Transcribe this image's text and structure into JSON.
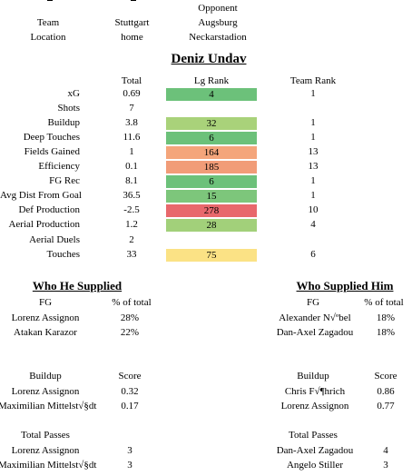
{
  "header": {
    "cols": [
      "",
      "",
      "Opponent"
    ],
    "row1": {
      "label": "Team",
      "team": "Stuttgart",
      "opponent": "Augsburg"
    },
    "row2": {
      "label": "Location",
      "team": "home",
      "opponent": "Neckarstadion"
    }
  },
  "player": "Deniz Undav",
  "stats_table": {
    "columns": [
      "Total",
      "Lg Rank",
      "Team Rank"
    ],
    "rows": [
      {
        "name": "xG",
        "total": "0.69",
        "lg_rank": "4",
        "team_rank": "1",
        "color": "#6cc17a"
      },
      {
        "name": "Shots",
        "total": "7",
        "lg_rank": "",
        "team_rank": "",
        "color": ""
      },
      {
        "name": "Buildup",
        "total": "3.8",
        "lg_rank": "32",
        "team_rank": "1",
        "color": "#a9d27a"
      },
      {
        "name": "Deep Touches",
        "total": "11.6",
        "lg_rank": "6",
        "team_rank": "1",
        "color": "#6cc17a"
      },
      {
        "name": "Fields Gained",
        "total": "1",
        "lg_rank": "164",
        "team_rank": "13",
        "color": "#f4a57b"
      },
      {
        "name": "Efficiency",
        "total": "0.1",
        "lg_rank": "185",
        "team_rank": "13",
        "color": "#f19c78"
      },
      {
        "name": "FG Rec",
        "total": "8.1",
        "lg_rank": "6",
        "team_rank": "1",
        "color": "#6cc17a"
      },
      {
        "name": "Avg Dist From Goal",
        "total": "36.5",
        "lg_rank": "15",
        "team_rank": "1",
        "color": "#7dc67b"
      },
      {
        "name": "Def Production",
        "total": "-2.5",
        "lg_rank": "278",
        "team_rank": "10",
        "color": "#e8686c"
      },
      {
        "name": "Aerial Production",
        "total": "1.2",
        "lg_rank": "28",
        "team_rank": "4",
        "color": "#a2d07a"
      },
      {
        "name": "Aerial Duels",
        "total": "2",
        "lg_rank": "",
        "team_rank": "",
        "color": ""
      },
      {
        "name": "Touches",
        "total": "33",
        "lg_rank": "75",
        "team_rank": "6",
        "color": "#fbe285"
      }
    ]
  },
  "supplied": {
    "title": "Who He Supplied",
    "fg": {
      "headers": [
        "FG",
        "% of total"
      ],
      "rows": [
        [
          "Lorenz Assignon",
          "28%"
        ],
        [
          "Atakan Karazor",
          "22%"
        ]
      ]
    },
    "buildup": {
      "headers": [
        "Buildup",
        "Score"
      ],
      "rows": [
        [
          "Lorenz Assignon",
          "0.32"
        ],
        [
          "Maximilian Mittelst√§dt",
          "0.17"
        ]
      ]
    },
    "passes": {
      "headers": [
        "Total Passes",
        ""
      ],
      "rows": [
        [
          "Lorenz Assignon",
          "3"
        ],
        [
          "Maximilian Mittelst√§dt",
          "3"
        ]
      ]
    }
  },
  "supplied_him": {
    "title": "Who Supplied Him",
    "fg": {
      "headers": [
        "FG",
        "% of total"
      ],
      "rows": [
        [
          "Alexander N√ºbel",
          "18%"
        ],
        [
          "Dan-Axel Zagadou",
          "18%"
        ]
      ]
    },
    "buildup": {
      "headers": [
        "Buildup",
        "Score"
      ],
      "rows": [
        [
          "Chris F√¶hrich",
          "0.86"
        ],
        [
          "Lorenz Assignon",
          "0.77"
        ]
      ]
    },
    "passes": {
      "headers": [
        "Total Passes",
        ""
      ],
      "rows": [
        [
          "Dan-Axel Zagadou",
          "4"
        ],
        [
          "Angelo Stiller",
          "3"
        ]
      ]
    }
  }
}
